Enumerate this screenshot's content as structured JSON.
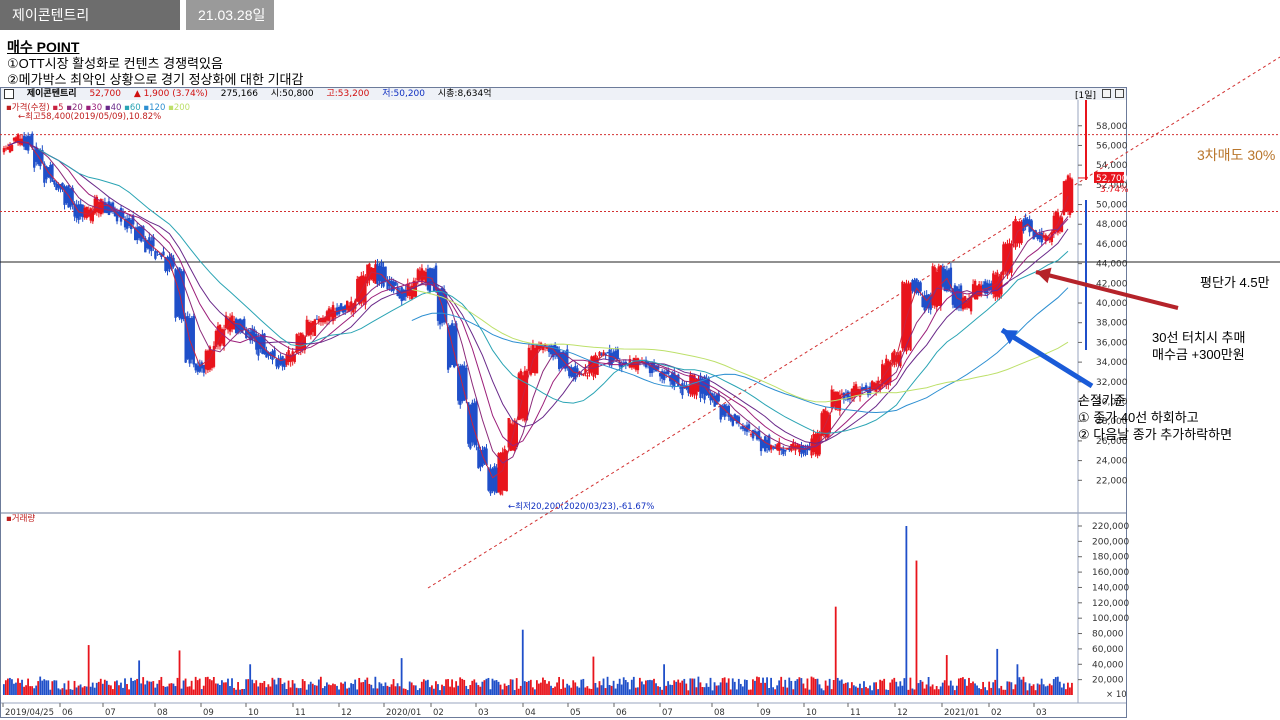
{
  "tabs": {
    "stock_name": "제이콘텐트리",
    "date": "21.03.28일"
  },
  "buy_point": {
    "title": "매수 POINT",
    "lines": [
      "①OTT시장 활성화로 컨텐츠 경쟁력있음",
      "②메가박스 최악인 상황으로 경기 정상화에 대한 기대감"
    ]
  },
  "header": {
    "name": "제이콘텐트리",
    "price": "52,700",
    "change": "▲ 1,900 (3.74%)",
    "volume": "275,166",
    "open": "시:50,800",
    "high": "고:53,200",
    "low": "저:50,200",
    "market_cap": "시총:8,634억",
    "period": "[1일]"
  },
  "legend": {
    "price_label": "가격(수정)",
    "ma_items": [
      "5",
      "20",
      "30",
      "40",
      "60",
      "120",
      "200"
    ],
    "max_label": "←최고58,400(2019/05/09),10.82%",
    "min_label": "←최저20,200(2020/03/23),-61.67%",
    "volume_label": "거래량"
  },
  "annotations": {
    "sell3": "3차매도 30%",
    "avg_price": "평단가 4.5만",
    "ma30_buy_1": "30선 터치시 추매",
    "ma30_buy_2": "매수금 +300만원",
    "stop_title": "손절기준",
    "stop_1": "① 종가 40선 하회하고",
    "stop_2": "② 다음날 종가 추가하락하면"
  },
  "price_tag": {
    "value": "52,700",
    "pct": "3.74%"
  },
  "colors": {
    "up": "#e8141c",
    "down": "#1f4fc9",
    "ma5": "#c9233f",
    "ma20": "#8b2a7a",
    "ma30": "#9c1f7a",
    "ma40": "#6a2a8a",
    "ma60": "#2aa4b4",
    "ma120": "#2d8fd1",
    "ma200": "#bde06a",
    "ref_line": "#d23030",
    "sell_text": "#b9762c",
    "arrow_red": "#b5232a",
    "arrow_blue": "#1a5bd8"
  },
  "chart_data": {
    "type": "line",
    "title": "",
    "xlabel": "",
    "ylabel": "",
    "price_axis": {
      "ylim": [
        20000,
        60000
      ],
      "ticks": [
        "58,000",
        "56,000",
        "54,000",
        "52,000",
        "50,000",
        "48,000",
        "46,000",
        "44,000",
        "42,000",
        "40,000",
        "38,000",
        "36,000",
        "34,000",
        "32,000",
        "30,000",
        "28,000",
        "26,000",
        "24,000",
        "22,000"
      ]
    },
    "volume_axis": {
      "ylim": [
        0,
        230000
      ],
      "ticks": [
        "220,000",
        "200,000",
        "180,000",
        "160,000",
        "140,000",
        "120,000",
        "100,000",
        "80,000",
        "60,000",
        "40,000",
        "20,000"
      ],
      "unit": "× 10"
    },
    "x_tick_labels": [
      "2019/04/25",
      "06",
      "07",
      "08",
      "09",
      "10",
      "11",
      "12",
      "2020/01",
      "02",
      "03",
      "04",
      "05",
      "06",
      "07",
      "08",
      "09",
      "10",
      "11",
      "12",
      "2021/01",
      "02",
      "03"
    ],
    "series": [
      {
        "values": [
          56000,
          56800,
          55800,
          54000,
          52500,
          51800,
          50000,
          48500,
          49500,
          50500,
          49200,
          48500,
          47800,
          46500,
          45500,
          44800,
          43500,
          38500,
          34000,
          33200,
          35500,
          37500,
          38500,
          37200,
          36500,
          35000,
          34500,
          33800,
          35000,
          36800,
          38000,
          38500,
          39500,
          39000,
          40000,
          42500,
          43800,
          42000,
          41500,
          40500,
          42000,
          43500,
          41500,
          38000,
          33500,
          30000,
          25500,
          23500,
          21000,
          25000,
          28000,
          33000,
          35500,
          35800,
          34800,
          33500,
          32500,
          33000,
          34500,
          35000,
          34000,
          33500,
          34200,
          33800,
          33000,
          32500,
          31800,
          31000,
          32500,
          30500,
          29800,
          28500,
          27800,
          27000,
          26500,
          25200,
          25500,
          25000,
          25500,
          24800,
          26500,
          29000,
          31000,
          30500,
          31500,
          31000,
          32000,
          34000,
          35000,
          42000,
          41000,
          39500,
          43500,
          41500,
          39500,
          40500,
          42000,
          41000,
          43000,
          46000,
          48500,
          47500,
          46500,
          47000,
          49000,
          52700
        ]
      }
    ]
  },
  "volume_chart": {
    "note": ""
  }
}
